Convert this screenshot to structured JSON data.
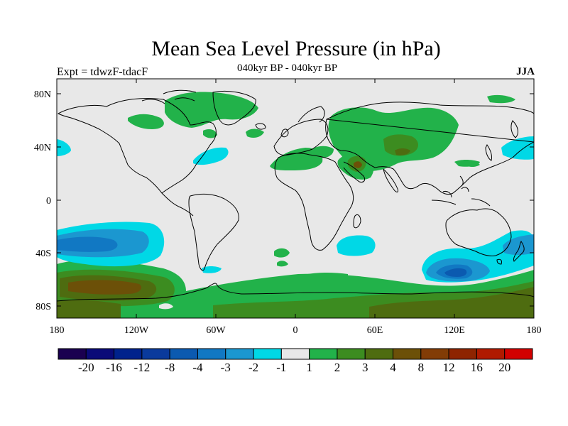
{
  "title": "Mean Sea Level Pressure (in hPa)",
  "left_label": "Expt = tdwzF-tdacF",
  "center_label": "040kyr BP - 040kyr BP",
  "right_label": "JJA",
  "lat_ticks": [
    "80N",
    "40N",
    "0",
    "40S",
    "80S"
  ],
  "lon_ticks": [
    "180",
    "120W",
    "60W",
    "0",
    "60E",
    "120E",
    "180"
  ],
  "colorbar": {
    "colors": [
      "#1a0050",
      "#0a0a78",
      "#00228c",
      "#0a3a9c",
      "#0b5ab0",
      "#1178c3",
      "#1b97d0",
      "#00d8e6",
      "#e8e8e8",
      "#22b24a",
      "#3c8c20",
      "#4e6c10",
      "#6c5008",
      "#823c06",
      "#8e2400",
      "#b01a00",
      "#d20000"
    ],
    "labels": [
      "-20",
      "-16",
      "-12",
      "-8",
      "-4",
      "-3",
      "-2",
      "-1",
      "1",
      "2",
      "3",
      "4",
      "8",
      "12",
      "16",
      "20"
    ]
  },
  "colors": {
    "background_field": "#e8e8e8",
    "pos_green": "#22b24a",
    "pos_dark_green": "#3c8c20",
    "pos_olive": "#4e6c10",
    "pos_brown": "#6c5008",
    "neg_cyan": "#00d8e6",
    "neg_blue": "#1b97d0",
    "neg_mid_blue": "#1178c3",
    "neg_dark_blue": "#0b5ab0"
  }
}
